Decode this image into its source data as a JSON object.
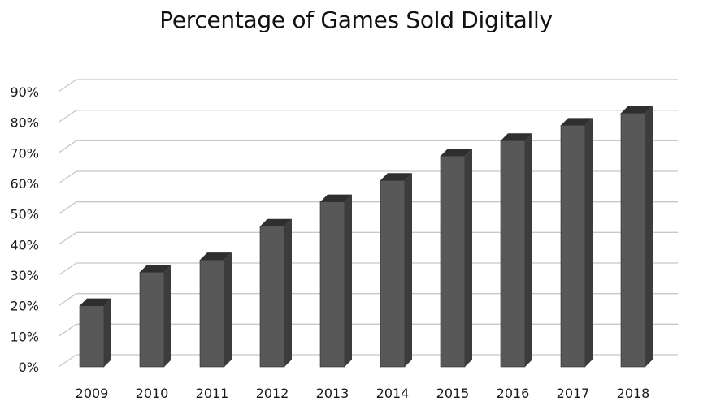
{
  "chart_data": {
    "type": "bar",
    "title": "Percentage of Games Sold Digitally",
    "xlabel": "",
    "ylabel": "",
    "categories": [
      "2009",
      "2010",
      "2011",
      "2012",
      "2013",
      "2014",
      "2015",
      "2016",
      "2017",
      "2018"
    ],
    "values": [
      20,
      31,
      35,
      46,
      54,
      61,
      69,
      74,
      79,
      83
    ],
    "ylim": [
      0,
      90
    ],
    "yticks": [
      "0%",
      "10%",
      "20%",
      "30%",
      "40%",
      "50%",
      "60%",
      "70%",
      "80%",
      "90%"
    ],
    "grid": true,
    "legend": "none",
    "style": "3d-columns",
    "colors": {
      "bar_front": "#585858",
      "bar_side": "#3c3c3c",
      "bar_top": "#2f2f2f",
      "grid": "#c8c8c8",
      "text": "#1a1a1a"
    }
  }
}
